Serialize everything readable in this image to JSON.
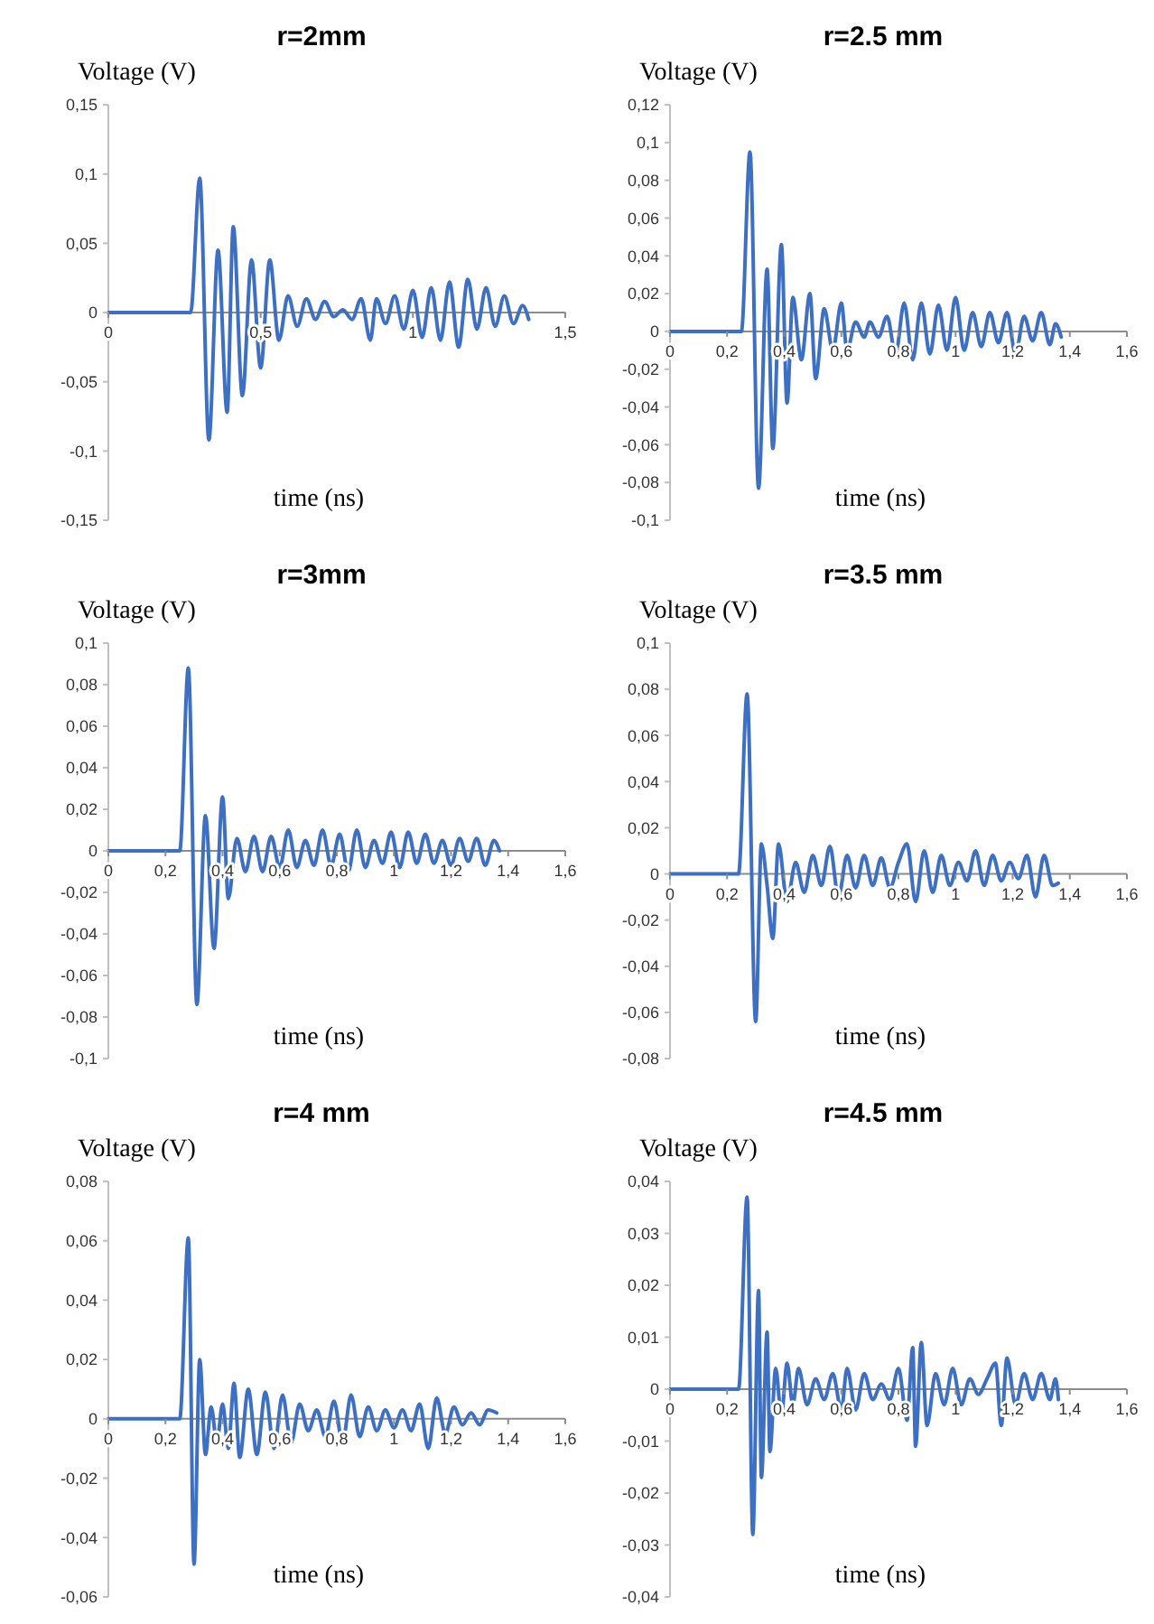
{
  "chart_data": [
    {
      "type": "line",
      "title": "r=2mm",
      "xlabel": "time (ns)",
      "ylabel": "Voltage (V)",
      "color": "#3d6fc2",
      "xlim": [
        0,
        1.5
      ],
      "ylim": [
        -0.15,
        0.15
      ],
      "xticks": [
        {
          "value": 0,
          "label": "0"
        },
        {
          "value": 0.5,
          "label": "0,5"
        },
        {
          "value": 1,
          "label": "1"
        },
        {
          "value": 1.5,
          "label": "1,5"
        }
      ],
      "yticks": [
        {
          "value": -0.15,
          "label": "-0,15"
        },
        {
          "value": -0.1,
          "label": "-0,1"
        },
        {
          "value": -0.05,
          "label": "-0,05"
        },
        {
          "value": 0,
          "label": "0"
        },
        {
          "value": 0.05,
          "label": "0,05"
        },
        {
          "value": 0.1,
          "label": "0,1"
        },
        {
          "value": 0.15,
          "label": "0,15"
        }
      ],
      "x": [
        0,
        0.27,
        0.3,
        0.33,
        0.36,
        0.39,
        0.41,
        0.44,
        0.47,
        0.5,
        0.53,
        0.56,
        0.59,
        0.62,
        0.65,
        0.68,
        0.71,
        0.74,
        0.77,
        0.8,
        0.83,
        0.86,
        0.88,
        0.91,
        0.94,
        0.97,
        1.0,
        1.03,
        1.06,
        1.09,
        1.12,
        1.15,
        1.18,
        1.21,
        1.24,
        1.27,
        1.3,
        1.33,
        1.36,
        1.38
      ],
      "values": [
        0,
        0,
        0.097,
        -0.092,
        0.045,
        -0.072,
        0.062,
        -0.06,
        0.038,
        -0.04,
        0.038,
        -0.02,
        0.012,
        -0.01,
        0.01,
        -0.005,
        0.008,
        -0.003,
        0.002,
        -0.005,
        0.01,
        -0.02,
        0.01,
        -0.008,
        0.012,
        -0.012,
        0.016,
        -0.018,
        0.018,
        -0.02,
        0.022,
        -0.025,
        0.024,
        -0.012,
        0.018,
        -0.01,
        0.012,
        -0.008,
        0.005,
        -0.005
      ]
    },
    {
      "type": "line",
      "title": "r=2.5 mm",
      "xlabel": "time (ns)",
      "ylabel": "Voltage (V)",
      "color": "#3d6fc2",
      "xlim": [
        0,
        1.6
      ],
      "ylim": [
        -0.1,
        0.12
      ],
      "xticks": [
        {
          "value": 0,
          "label": "0"
        },
        {
          "value": 0.2,
          "label": "0,2"
        },
        {
          "value": 0.4,
          "label": "0,4"
        },
        {
          "value": 0.6,
          "label": "0,6"
        },
        {
          "value": 0.8,
          "label": "0,8"
        },
        {
          "value": 1,
          "label": "1"
        },
        {
          "value": 1.2,
          "label": "1,2"
        },
        {
          "value": 1.4,
          "label": "1,4"
        },
        {
          "value": 1.6,
          "label": "1,6"
        }
      ],
      "yticks": [
        {
          "value": -0.1,
          "label": "-0,1"
        },
        {
          "value": -0.08,
          "label": "-0,08"
        },
        {
          "value": -0.06,
          "label": "-0,06"
        },
        {
          "value": -0.04,
          "label": "-0,04"
        },
        {
          "value": -0.02,
          "label": "-0,02"
        },
        {
          "value": 0,
          "label": "0"
        },
        {
          "value": 0.02,
          "label": "0,02"
        },
        {
          "value": 0.04,
          "label": "0,04"
        },
        {
          "value": 0.06,
          "label": "0,06"
        },
        {
          "value": 0.08,
          "label": "0,08"
        },
        {
          "value": 0.1,
          "label": "0,1"
        },
        {
          "value": 0.12,
          "label": "0,12"
        }
      ],
      "x": [
        0,
        0.25,
        0.28,
        0.31,
        0.34,
        0.36,
        0.39,
        0.41,
        0.43,
        0.46,
        0.49,
        0.51,
        0.54,
        0.57,
        0.6,
        0.62,
        0.65,
        0.68,
        0.7,
        0.73,
        0.76,
        0.79,
        0.82,
        0.85,
        0.88,
        0.91,
        0.94,
        0.97,
        1.0,
        1.03,
        1.06,
        1.09,
        1.12,
        1.15,
        1.18,
        1.21,
        1.24,
        1.27,
        1.3,
        1.33,
        1.35,
        1.37
      ],
      "values": [
        0,
        0,
        0.095,
        -0.083,
        0.033,
        -0.062,
        0.046,
        -0.038,
        0.018,
        -0.015,
        0.02,
        -0.025,
        0.012,
        -0.01,
        0.015,
        -0.01,
        0.005,
        -0.003,
        0.005,
        -0.003,
        0.008,
        -0.012,
        0.015,
        -0.015,
        0.015,
        -0.012,
        0.014,
        -0.01,
        0.018,
        -0.01,
        0.01,
        -0.008,
        0.01,
        -0.006,
        0.01,
        -0.012,
        0.008,
        -0.005,
        0.01,
        -0.007,
        0.004,
        -0.003
      ]
    },
    {
      "type": "line",
      "title": "r=3mm",
      "xlabel": "time (ns)",
      "ylabel": "Voltage (V)",
      "color": "#3d6fc2",
      "xlim": [
        0,
        1.6
      ],
      "ylim": [
        -0.1,
        0.1
      ],
      "xticks": [
        {
          "value": 0,
          "label": "0"
        },
        {
          "value": 0.2,
          "label": "0,2"
        },
        {
          "value": 0.4,
          "label": "0,4"
        },
        {
          "value": 0.6,
          "label": "0,6"
        },
        {
          "value": 0.8,
          "label": "0,8"
        },
        {
          "value": 1,
          "label": "1"
        },
        {
          "value": 1.2,
          "label": "1,2"
        },
        {
          "value": 1.4,
          "label": "1,4"
        },
        {
          "value": 1.6,
          "label": "1,6"
        }
      ],
      "yticks": [
        {
          "value": -0.1,
          "label": "-0,1"
        },
        {
          "value": -0.08,
          "label": "-0,08"
        },
        {
          "value": -0.06,
          "label": "-0,06"
        },
        {
          "value": -0.04,
          "label": "-0,04"
        },
        {
          "value": -0.02,
          "label": "-0,02"
        },
        {
          "value": 0,
          "label": "0"
        },
        {
          "value": 0.02,
          "label": "0,02"
        },
        {
          "value": 0.04,
          "label": "0,04"
        },
        {
          "value": 0.06,
          "label": "0,06"
        },
        {
          "value": 0.08,
          "label": "0,08"
        },
        {
          "value": 0.1,
          "label": "0,1"
        }
      ],
      "x": [
        0,
        0.25,
        0.28,
        0.31,
        0.34,
        0.37,
        0.4,
        0.42,
        0.45,
        0.48,
        0.51,
        0.54,
        0.57,
        0.6,
        0.63,
        0.66,
        0.69,
        0.72,
        0.75,
        0.78,
        0.81,
        0.84,
        0.87,
        0.9,
        0.93,
        0.96,
        0.99,
        1.02,
        1.05,
        1.08,
        1.11,
        1.14,
        1.17,
        1.2,
        1.23,
        1.26,
        1.29,
        1.32,
        1.35,
        1.37
      ],
      "values": [
        0,
        0,
        0.088,
        -0.074,
        0.017,
        -0.047,
        0.026,
        -0.023,
        0.006,
        -0.01,
        0.007,
        -0.01,
        0.007,
        -0.008,
        0.01,
        -0.008,
        0.005,
        -0.007,
        0.01,
        -0.007,
        0.008,
        -0.01,
        0.01,
        -0.008,
        0.005,
        -0.006,
        0.009,
        -0.008,
        0.009,
        -0.006,
        0.008,
        -0.006,
        0.005,
        -0.007,
        0.006,
        -0.005,
        0.006,
        -0.007,
        0.005,
        0
      ]
    },
    {
      "type": "line",
      "title": "r=3.5 mm",
      "xlabel": "time (ns)",
      "ylabel": "Voltage (V)",
      "color": "#3d6fc2",
      "xlim": [
        0,
        1.6
      ],
      "ylim": [
        -0.08,
        0.1
      ],
      "xticks": [
        {
          "value": 0,
          "label": "0"
        },
        {
          "value": 0.2,
          "label": "0,2"
        },
        {
          "value": 0.4,
          "label": "0,4"
        },
        {
          "value": 0.6,
          "label": "0,6"
        },
        {
          "value": 0.8,
          "label": "0,8"
        },
        {
          "value": 1,
          "label": "1"
        },
        {
          "value": 1.2,
          "label": "1,2"
        },
        {
          "value": 1.4,
          "label": "1,4"
        },
        {
          "value": 1.6,
          "label": "1,6"
        }
      ],
      "yticks": [
        {
          "value": -0.08,
          "label": "-0,08"
        },
        {
          "value": -0.06,
          "label": "-0,06"
        },
        {
          "value": -0.04,
          "label": "-0,04"
        },
        {
          "value": -0.02,
          "label": "-0,02"
        },
        {
          "value": 0,
          "label": "0"
        },
        {
          "value": 0.02,
          "label": "0,02"
        },
        {
          "value": 0.04,
          "label": "0,04"
        },
        {
          "value": 0.06,
          "label": "0,06"
        },
        {
          "value": 0.08,
          "label": "0,08"
        },
        {
          "value": 0.1,
          "label": "0,1"
        }
      ],
      "x": [
        0,
        0.24,
        0.27,
        0.3,
        0.32,
        0.34,
        0.36,
        0.38,
        0.41,
        0.44,
        0.47,
        0.5,
        0.53,
        0.56,
        0.59,
        0.62,
        0.65,
        0.68,
        0.71,
        0.74,
        0.77,
        0.8,
        0.83,
        0.86,
        0.89,
        0.92,
        0.95,
        0.98,
        1.01,
        1.04,
        1.07,
        1.1,
        1.13,
        1.16,
        1.19,
        1.22,
        1.25,
        1.28,
        1.31,
        1.34,
        1.36
      ],
      "values": [
        0,
        0,
        0.078,
        -0.064,
        0.013,
        -0.005,
        -0.028,
        0.013,
        -0.012,
        0.005,
        -0.008,
        0.008,
        -0.005,
        0.012,
        -0.01,
        0.008,
        -0.006,
        0.008,
        -0.005,
        0.007,
        -0.006,
        0.005,
        0.013,
        -0.012,
        0.01,
        -0.008,
        0.008,
        -0.005,
        0.005,
        -0.003,
        0.01,
        -0.005,
        0.008,
        -0.003,
        0.005,
        -0.002,
        0.008,
        -0.01,
        0.008,
        -0.005,
        -0.004
      ]
    },
    {
      "type": "line",
      "title": "r=4 mm",
      "xlabel": "time (ns)",
      "ylabel": "Voltage (V)",
      "color": "#3d6fc2",
      "xlim": [
        0,
        1.6
      ],
      "ylim": [
        -0.06,
        0.08
      ],
      "xticks": [
        {
          "value": 0,
          "label": "0"
        },
        {
          "value": 0.2,
          "label": "0,2"
        },
        {
          "value": 0.4,
          "label": "0,4"
        },
        {
          "value": 0.6,
          "label": "0,6"
        },
        {
          "value": 0.8,
          "label": "0,8"
        },
        {
          "value": 1,
          "label": "1"
        },
        {
          "value": 1.2,
          "label": "1,2"
        },
        {
          "value": 1.4,
          "label": "1,4"
        },
        {
          "value": 1.6,
          "label": "1,6"
        }
      ],
      "yticks": [
        {
          "value": -0.06,
          "label": "-0,06"
        },
        {
          "value": -0.04,
          "label": "-0,04"
        },
        {
          "value": -0.02,
          "label": "-0,02"
        },
        {
          "value": 0,
          "label": "0"
        },
        {
          "value": 0.02,
          "label": "0,02"
        },
        {
          "value": 0.04,
          "label": "0,04"
        },
        {
          "value": 0.06,
          "label": "0,06"
        },
        {
          "value": 0.08,
          "label": "0,08"
        }
      ],
      "x": [
        0,
        0.25,
        0.28,
        0.3,
        0.32,
        0.34,
        0.36,
        0.38,
        0.4,
        0.42,
        0.44,
        0.46,
        0.49,
        0.52,
        0.55,
        0.58,
        0.61,
        0.64,
        0.67,
        0.7,
        0.73,
        0.76,
        0.79,
        0.82,
        0.85,
        0.88,
        0.91,
        0.94,
        0.97,
        1.0,
        1.03,
        1.06,
        1.09,
        1.12,
        1.15,
        1.18,
        1.21,
        1.24,
        1.27,
        1.3,
        1.33,
        1.36
      ],
      "values": [
        0,
        0,
        0.061,
        -0.049,
        0.02,
        -0.012,
        0.004,
        -0.008,
        0.005,
        -0.01,
        0.012,
        -0.013,
        0.01,
        -0.012,
        0.009,
        -0.01,
        0.008,
        -0.008,
        0.005,
        -0.004,
        0.003,
        -0.006,
        0.006,
        -0.008,
        0.008,
        -0.006,
        0.004,
        -0.004,
        0.003,
        -0.003,
        0.003,
        -0.004,
        0.005,
        -0.01,
        0.007,
        -0.005,
        0.004,
        -0.002,
        0.002,
        -0.002,
        0.003,
        0.002
      ]
    },
    {
      "type": "line",
      "title": "r=4.5 mm",
      "xlabel": "time (ns)",
      "ylabel": "Voltage (V)",
      "color": "#3d6fc2",
      "xlim": [
        0,
        1.6
      ],
      "ylim": [
        -0.04,
        0.04
      ],
      "xticks": [
        {
          "value": 0,
          "label": "0"
        },
        {
          "value": 0.2,
          "label": "0,2"
        },
        {
          "value": 0.4,
          "label": "0,4"
        },
        {
          "value": 0.6,
          "label": "0,6"
        },
        {
          "value": 0.8,
          "label": "0,8"
        },
        {
          "value": 1,
          "label": "1"
        },
        {
          "value": 1.2,
          "label": "1,2"
        },
        {
          "value": 1.4,
          "label": "1,4"
        },
        {
          "value": 1.6,
          "label": "1,6"
        }
      ],
      "yticks": [
        {
          "value": -0.04,
          "label": "-0,04"
        },
        {
          "value": -0.03,
          "label": "-0,03"
        },
        {
          "value": -0.02,
          "label": "-0,02"
        },
        {
          "value": -0.01,
          "label": "-0,01"
        },
        {
          "value": 0,
          "label": "0"
        },
        {
          "value": 0.01,
          "label": "0,01"
        },
        {
          "value": 0.02,
          "label": "0,02"
        },
        {
          "value": 0.03,
          "label": "0,03"
        },
        {
          "value": 0.04,
          "label": "0,04"
        }
      ],
      "x": [
        0,
        0.24,
        0.27,
        0.29,
        0.31,
        0.32,
        0.34,
        0.35,
        0.37,
        0.39,
        0.41,
        0.43,
        0.45,
        0.48,
        0.51,
        0.54,
        0.57,
        0.6,
        0.62,
        0.65,
        0.68,
        0.71,
        0.74,
        0.77,
        0.8,
        0.83,
        0.85,
        0.86,
        0.88,
        0.9,
        0.93,
        0.96,
        0.99,
        1.02,
        1.05,
        1.08,
        1.11,
        1.14,
        1.16,
        1.18,
        1.21,
        1.24,
        1.27,
        1.3,
        1.33,
        1.35,
        1.36
      ],
      "values": [
        0,
        0,
        0.037,
        -0.028,
        0.019,
        -0.017,
        0.011,
        -0.012,
        0.004,
        -0.005,
        0.005,
        -0.003,
        0.004,
        -0.003,
        0.002,
        -0.002,
        0.003,
        -0.004,
        0.004,
        -0.004,
        0.003,
        -0.002,
        0.001,
        -0.002,
        0.004,
        -0.006,
        0.008,
        -0.011,
        0.009,
        -0.007,
        0.003,
        -0.003,
        0.004,
        -0.003,
        0.002,
        -0.001,
        0.002,
        0.005,
        -0.007,
        0.006,
        -0.003,
        0.003,
        -0.002,
        0.003,
        -0.002,
        0.002,
        -0.002
      ]
    }
  ]
}
